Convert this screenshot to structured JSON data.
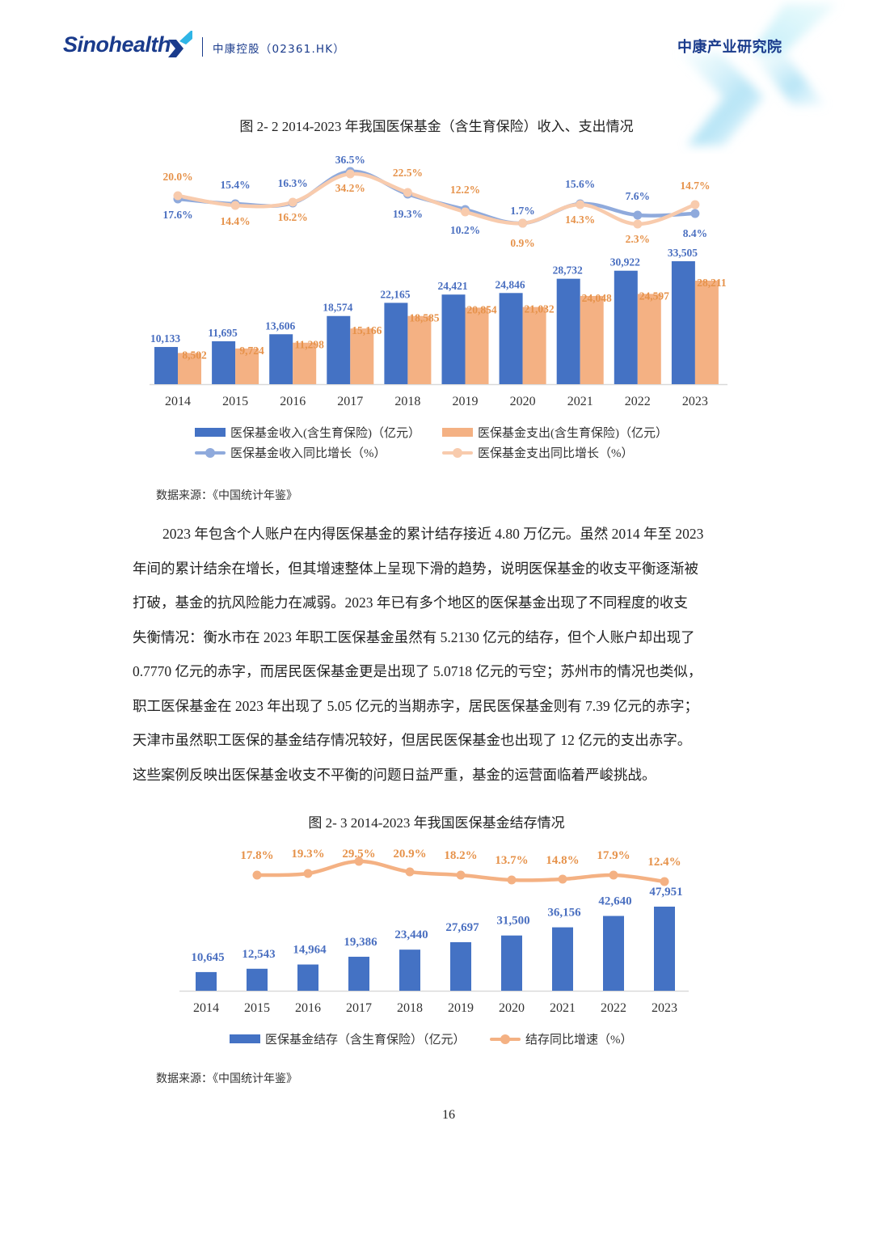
{
  "header": {
    "logo_text": "Sinohealth",
    "company": "中康控股（02361.HK）",
    "institute": "中康产业研究院"
  },
  "figure1": {
    "title": "图 2- 2 2014-2023 年我国医保基金（含生育保险）收入、支出情况",
    "source": "数据来源：《中国统计年鉴》",
    "legend": {
      "income": "医保基金收入(含生育保险)（亿元）",
      "expense": "医保基金支出(含生育保险)（亿元）",
      "income_growth": "医保基金收入同比增长（%）",
      "expense_growth": "医保基金支出同比增长（%）"
    }
  },
  "paragraph": {
    "lines": [
      "2023 年包含个人账户在内得医保基金的累计结存接近 4.80 万亿元。虽然 2014 年至 2023",
      "年间的累计结余在增长，但其增速整体上呈现下滑的趋势，说明医保基金的收支平衡逐渐被",
      "打破，基金的抗风险能力在减弱。2023 年已有多个地区的医保基金出现了不同程度的收支",
      "失衡情况：衡水市在 2023 年职工医保基金虽然有 5.2130 亿元的结存，但个人账户却出现了",
      "0.7770 亿元的赤字，而居民医保基金更是出现了 5.0718 亿元的亏空；苏州市的情况也类似，",
      "职工医保基金在 2023 年出现了 5.05 亿元的当期赤字，居民医保基金则有 7.39 亿元的赤字；",
      "天津市虽然职工医保的基金结存情况较好，但居民医保基金也出现了 12 亿元的支出赤字。",
      "这些案例反映出医保基金收支不平衡的问题日益严重，基金的运营面临着严峻挑战。"
    ]
  },
  "figure2": {
    "title": "图 2- 3 2014-2023 年我国医保基金结存情况",
    "source": "数据来源：《中国统计年鉴》",
    "legend": {
      "balance": "医保基金结存（含生育保险）（亿元）",
      "growth": "结存同比增速（%）"
    }
  },
  "page_number": "16",
  "colors": {
    "blue_bar": "#4472C4",
    "orange_bar": "#F4B183",
    "blue_line": "#8FAADC",
    "orange_line": "#F8CBAD",
    "blue_label": "#4A6FC0",
    "orange_label": "#E6924A",
    "brand": "#1a3b8c"
  },
  "chart_data": [
    {
      "type": "bar+line",
      "title": "图 2- 2 2014-2023 年我国医保基金（含生育保险）收入、支出情况",
      "categories": [
        "2014",
        "2015",
        "2016",
        "2017",
        "2018",
        "2019",
        "2020",
        "2021",
        "2022",
        "2023"
      ],
      "series": [
        {
          "name": "医保基金收入(含生育保险)（亿元）",
          "kind": "bar",
          "values": [
            10133,
            11695,
            13606,
            18574,
            22165,
            24421,
            24846,
            28732,
            30922,
            33505
          ]
        },
        {
          "name": "医保基金支出(含生育保险)（亿元）",
          "kind": "bar",
          "values": [
            8502,
            9724,
            11298,
            15166,
            18585,
            20854,
            21032,
            24048,
            24597,
            28211
          ]
        },
        {
          "name": "医保基金收入同比增长（%）",
          "kind": "line",
          "values": [
            17.6,
            15.4,
            16.3,
            36.5,
            19.3,
            10.2,
            1.7,
            15.6,
            7.6,
            8.4
          ]
        },
        {
          "name": "医保基金支出同比增长（%）",
          "kind": "line",
          "values": [
            20.0,
            14.4,
            16.2,
            34.2,
            22.5,
            12.2,
            0.9,
            14.3,
            2.3,
            14.7
          ]
        }
      ],
      "xlabel": "",
      "ylabel": "",
      "grid": false,
      "legend_position": "bottom"
    },
    {
      "type": "bar+line",
      "title": "图 2- 3 2014-2023 年我国医保基金结存情况",
      "categories": [
        "2014",
        "2015",
        "2016",
        "2017",
        "2018",
        "2019",
        "2020",
        "2021",
        "2022",
        "2023"
      ],
      "series": [
        {
          "name": "医保基金结存（含生育保险）（亿元）",
          "kind": "bar",
          "values": [
            10645,
            12543,
            14964,
            19386,
            23440,
            27697,
            31500,
            36156,
            42640,
            47951
          ]
        },
        {
          "name": "结存同比增速（%）",
          "kind": "line",
          "values": [
            17.8,
            19.3,
            29.5,
            20.9,
            18.2,
            13.7,
            14.8,
            17.9,
            12.4
          ]
        }
      ],
      "line_categories": [
        "2015",
        "2016",
        "2017",
        "2018",
        "2019",
        "2020",
        "2021",
        "2022",
        "2023"
      ],
      "xlabel": "",
      "ylabel": "",
      "grid": false,
      "legend_position": "bottom"
    }
  ]
}
